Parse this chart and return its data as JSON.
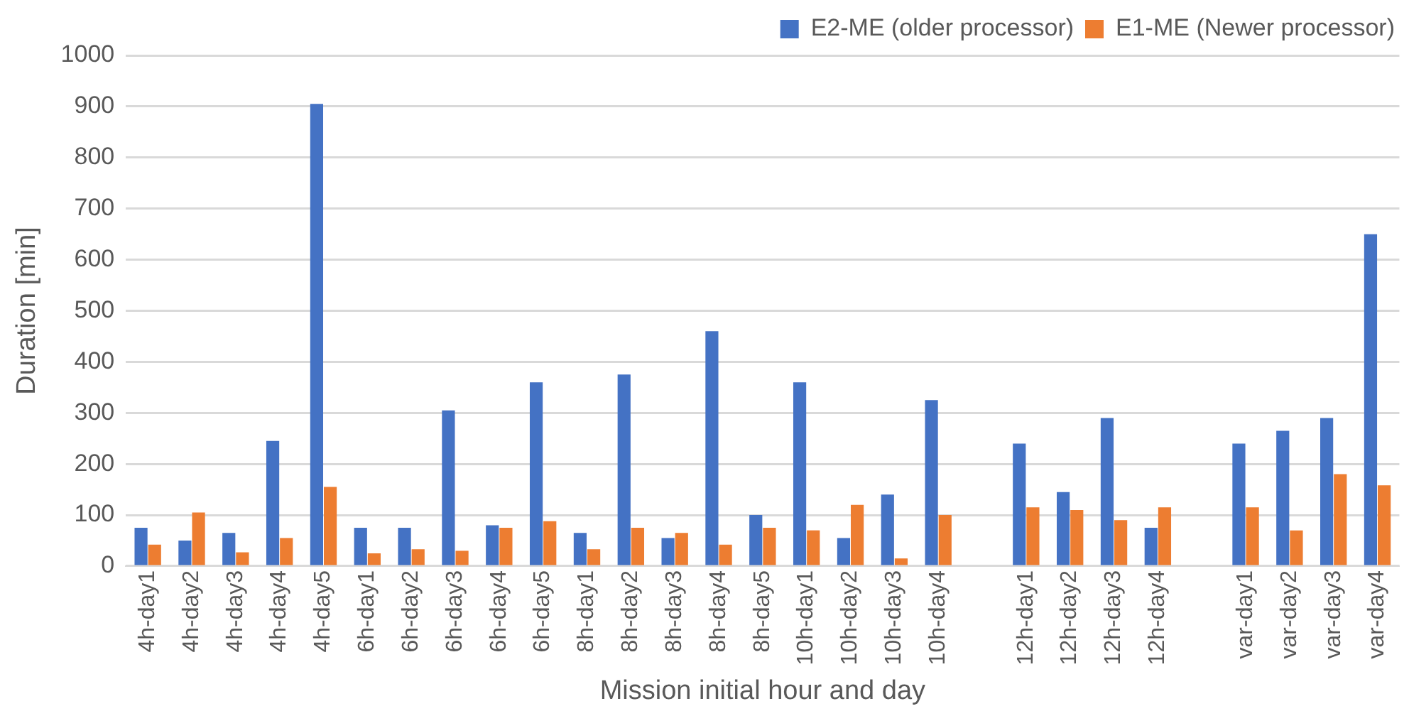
{
  "chart_data": {
    "type": "bar",
    "xlabel": "Mission initial hour and day",
    "ylabel": "Duration [min]",
    "categories": [
      "4h-day1",
      "4h-day2",
      "4h-day3",
      "4h-day4",
      "4h-day5",
      "6h-day1",
      "6h-day2",
      "6h-day3",
      "6h-day4",
      "6h-day5",
      "8h-day1",
      "8h-day2",
      "8h-day3",
      "8h-day4",
      "8h-day5",
      "10h-day1",
      "10h-day2",
      "10h-day3",
      "10h-day4",
      null,
      "12h-day1",
      "12h-day2",
      "12h-day3",
      "12h-day4",
      null,
      "var-day1",
      "var-day2",
      "var-day3",
      "var-day4"
    ],
    "series": [
      {
        "name": "E2-ME (older processor)",
        "color": "#4472c4",
        "values": [
          75,
          50,
          65,
          245,
          905,
          75,
          75,
          305,
          80,
          360,
          65,
          375,
          55,
          460,
          100,
          360,
          55,
          140,
          325,
          null,
          240,
          145,
          290,
          75,
          null,
          240,
          265,
          290,
          650
        ]
      },
      {
        "name": "E1-ME (Newer processor)",
        "color": "#ed7d31",
        "values": [
          42,
          105,
          27,
          55,
          155,
          25,
          33,
          30,
          75,
          88,
          33,
          75,
          65,
          42,
          75,
          70,
          120,
          15,
          100,
          null,
          115,
          110,
          90,
          115,
          null,
          115,
          70,
          180,
          158
        ]
      }
    ],
    "ylim": [
      0,
      1000
    ],
    "yticks": [
      0,
      100,
      200,
      300,
      400,
      500,
      600,
      700,
      800,
      900,
      1000
    ],
    "grid": "y",
    "legend": "top right"
  }
}
